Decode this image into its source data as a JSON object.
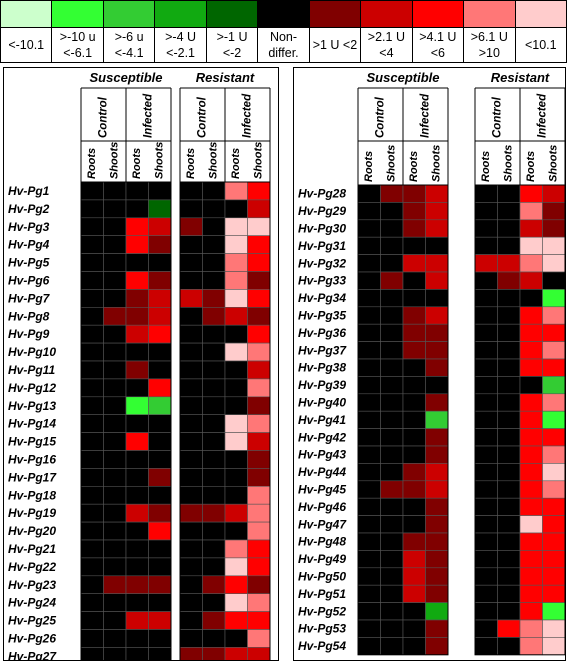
{
  "legend": [
    {
      "label": "<-10.1",
      "color": "#ccffcc"
    },
    {
      "label": ">-10 u <-6.1",
      "color": "#33ff33"
    },
    {
      "label": ">-6 u <-4.1",
      "color": "#33cc33"
    },
    {
      "label": ">-4 U <-2.1",
      "color": "#11aa11"
    },
    {
      "label": ">-1 U <-2",
      "color": "#006600"
    },
    {
      "label": "Non-differ.",
      "color": "#000000"
    },
    {
      "label": ">1 U <2",
      "color": "#800000"
    },
    {
      "label": ">2.1 U <4",
      "color": "#cc0000"
    },
    {
      "label": ">4.1 U <6",
      "color": "#ff0000"
    },
    {
      "label": ">6.1 U >10",
      "color": "#ff7777"
    },
    {
      "label": "<10.1",
      "color": "#ffcccc"
    }
  ],
  "groups": {
    "susceptible": "Susceptible",
    "resistant": "Resistant"
  },
  "conditions": {
    "control": "Control",
    "infected": "Infected"
  },
  "tissues": {
    "roots": "Roots",
    "shoots": "Shoots"
  },
  "chart_data": {
    "type": "heatmap",
    "legend_classes": [
      "<-10.1",
      ">-10 u <-6.1",
      ">-6 u <-4.1",
      ">-4 U <-2.1",
      ">-1 U <-2",
      "Non-differ.",
      ">1 U <2",
      ">2.1 U <4",
      ">4.1 U <6",
      ">6.1 U >10",
      "<10.1"
    ],
    "columns": [
      "Susceptible Control Roots",
      "Susceptible Control Shoots",
      "Susceptible Infected Roots",
      "Susceptible Infected Shoots",
      "Resistant Control Roots",
      "Resistant Control Shoots",
      "Resistant Infected Roots",
      "Resistant Infected Shoots"
    ],
    "panels": [
      {
        "genes": [
          "Hv-Pg1",
          "Hv-Pg2",
          "Hv-Pg3",
          "Hv-Pg4",
          "Hv-Pg5",
          "Hv-Pg6",
          "Hv-Pg7",
          "Hv-Pg8",
          "Hv-Pg9",
          "Hv-Pg10",
          "Hv-Pg11",
          "Hv-Pg12",
          "Hv-Pg13",
          "Hv-Pg14",
          "Hv-Pg15",
          "Hv-Pg16",
          "Hv-Pg17",
          "Hv-Pg18",
          "Hv-Pg19",
          "Hv-Pg20",
          "Hv-Pg21",
          "Hv-Pg22",
          "Hv-Pg23",
          "Hv-Pg24",
          "Hv-Pg25",
          "Hv-Pg26",
          "Hv-Pg27"
        ],
        "cells": [
          [
            "Non-differ.",
            "Non-differ.",
            "Non-differ.",
            "Non-differ.",
            "Non-differ.",
            "Non-differ.",
            ">6.1 U >10",
            ">4.1 U <6"
          ],
          [
            "Non-differ.",
            "Non-differ.",
            "Non-differ.",
            ">-1 U <-2",
            "Non-differ.",
            "Non-differ.",
            "Non-differ.",
            ">2.1 U <4"
          ],
          [
            "Non-differ.",
            "Non-differ.",
            ">4.1 U <6",
            ">2.1 U <4",
            ">1 U <2",
            "Non-differ.",
            "<10.1",
            "<10.1"
          ],
          [
            "Non-differ.",
            "Non-differ.",
            ">4.1 U <6",
            ">1 U <2",
            "Non-differ.",
            "Non-differ.",
            "<10.1",
            ">4.1 U <6"
          ],
          [
            "Non-differ.",
            "Non-differ.",
            "Non-differ.",
            "Non-differ.",
            "Non-differ.",
            "Non-differ.",
            ">6.1 U >10",
            ">4.1 U <6"
          ],
          [
            "Non-differ.",
            "Non-differ.",
            ">4.1 U <6",
            ">1 U <2",
            "Non-differ.",
            "Non-differ.",
            ">6.1 U >10",
            ">1 U <2"
          ],
          [
            "Non-differ.",
            "Non-differ.",
            ">1 U <2",
            ">2.1 U <4",
            ">2.1 U <4",
            ">1 U <2",
            "<10.1",
            ">4.1 U <6"
          ],
          [
            "Non-differ.",
            ">1 U <2",
            ">1 U <2",
            ">2.1 U <4",
            "Non-differ.",
            ">1 U <2",
            ">2.1 U <4",
            ">1 U <2"
          ],
          [
            "Non-differ.",
            "Non-differ.",
            ">2.1 U <4",
            ">4.1 U <6",
            "Non-differ.",
            "Non-differ.",
            "Non-differ.",
            ">4.1 U <6"
          ],
          [
            "Non-differ.",
            "Non-differ.",
            "Non-differ.",
            "Non-differ.",
            "Non-differ.",
            "Non-differ.",
            "<10.1",
            ">6.1 U >10"
          ],
          [
            "Non-differ.",
            "Non-differ.",
            ">1 U <2",
            "Non-differ.",
            "Non-differ.",
            "Non-differ.",
            "Non-differ.",
            ">2.1 U <4"
          ],
          [
            "Non-differ.",
            "Non-differ.",
            "Non-differ.",
            ">4.1 U <6",
            "Non-differ.",
            "Non-differ.",
            "Non-differ.",
            ">6.1 U >10"
          ],
          [
            "Non-differ.",
            "Non-differ.",
            ">-10 u <-6.1",
            ">-6 u <-4.1",
            "Non-differ.",
            "Non-differ.",
            "Non-differ.",
            ">1 U <2"
          ],
          [
            "Non-differ.",
            "Non-differ.",
            "Non-differ.",
            "Non-differ.",
            "Non-differ.",
            "Non-differ.",
            "<10.1",
            ">6.1 U >10"
          ],
          [
            "Non-differ.",
            "Non-differ.",
            ">4.1 U <6",
            "Non-differ.",
            "Non-differ.",
            "Non-differ.",
            "<10.1",
            ">2.1 U <4"
          ],
          [
            "Non-differ.",
            "Non-differ.",
            "Non-differ.",
            "Non-differ.",
            "Non-differ.",
            "Non-differ.",
            "Non-differ.",
            ">1 U <2"
          ],
          [
            "Non-differ.",
            "Non-differ.",
            "Non-differ.",
            ">1 U <2",
            "Non-differ.",
            "Non-differ.",
            "Non-differ.",
            ">1 U <2"
          ],
          [
            "Non-differ.",
            "Non-differ.",
            "Non-differ.",
            "Non-differ.",
            "Non-differ.",
            "Non-differ.",
            "Non-differ.",
            ">6.1 U >10"
          ],
          [
            "Non-differ.",
            "Non-differ.",
            ">2.1 U <4",
            ">1 U <2",
            ">1 U <2",
            ">1 U <2",
            ">2.1 U <4",
            ">6.1 U >10"
          ],
          [
            "Non-differ.",
            "Non-differ.",
            "Non-differ.",
            ">4.1 U <6",
            "Non-differ.",
            "Non-differ.",
            "Non-differ.",
            ">6.1 U >10"
          ],
          [
            "Non-differ.",
            "Non-differ.",
            "Non-differ.",
            "Non-differ.",
            "Non-differ.",
            "Non-differ.",
            ">6.1 U >10",
            ">4.1 U <6"
          ],
          [
            "Non-differ.",
            "Non-differ.",
            "Non-differ.",
            "Non-differ.",
            "Non-differ.",
            "Non-differ.",
            "<10.1",
            ">4.1 U <6"
          ],
          [
            "Non-differ.",
            ">1 U <2",
            ">1 U <2",
            ">1 U <2",
            "Non-differ.",
            ">1 U <2",
            ">4.1 U <6",
            ">1 U <2"
          ],
          [
            "Non-differ.",
            "Non-differ.",
            "Non-differ.",
            "Non-differ.",
            "Non-differ.",
            "Non-differ.",
            "<10.1",
            ">6.1 U >10"
          ],
          [
            "Non-differ.",
            "Non-differ.",
            ">2.1 U <4",
            ">2.1 U <4",
            "Non-differ.",
            ">1 U <2",
            ">4.1 U <6",
            ">4.1 U <6"
          ],
          [
            "Non-differ.",
            "Non-differ.",
            "Non-differ.",
            "Non-differ.",
            "Non-differ.",
            "Non-differ.",
            "Non-differ.",
            ">6.1 U >10"
          ],
          [
            "Non-differ.",
            "Non-differ.",
            "Non-differ.",
            "Non-differ.",
            ">1 U <2",
            ">1 U <2",
            ">2.1 U <4",
            ">2.1 U <4"
          ]
        ]
      },
      {
        "genes": [
          "Hv-Pg28",
          "Hv-Pg29",
          "Hv-Pg30",
          "Hv-Pg31",
          "Hv-Pg32",
          "Hv-Pg33",
          "Hv-Pg34",
          "Hv-Pg35",
          "Hv-Pg36",
          "Hv-Pg37",
          "Hv-Pg38",
          "Hv-Pg39",
          "Hv-Pg40",
          "Hv-Pg41",
          "Hv-Pg42",
          "Hv-Pg43",
          "Hv-Pg44",
          "Hv-Pg45",
          "Hv-Pg46",
          "Hv-Pg47",
          "Hv-Pg48",
          "Hv-Pg49",
          "Hv-Pg50",
          "Hv-Pg51",
          "Hv-Pg52",
          "Hv-Pg53",
          "Hv-Pg54"
        ],
        "cells": [
          [
            "Non-differ.",
            ">1 U <2",
            ">1 U <2",
            ">2.1 U <4",
            "Non-differ.",
            "Non-differ.",
            ">4.1 U <6",
            ">2.1 U <4"
          ],
          [
            "Non-differ.",
            "Non-differ.",
            ">1 U <2",
            ">2.1 U <4",
            "Non-differ.",
            "Non-differ.",
            ">6.1 U >10",
            ">1 U <2"
          ],
          [
            "Non-differ.",
            "Non-differ.",
            ">1 U <2",
            ">2.1 U <4",
            "Non-differ.",
            "Non-differ.",
            ">2.1 U <4",
            ">1 U <2"
          ],
          [
            "Non-differ.",
            "Non-differ.",
            "Non-differ.",
            "Non-differ.",
            "Non-differ.",
            "Non-differ.",
            "<10.1",
            "<10.1"
          ],
          [
            "Non-differ.",
            "Non-differ.",
            ">2.1 U <4",
            ">2.1 U <4",
            ">2.1 U <4",
            ">2.1 U <4",
            ">6.1 U >10",
            "<10.1"
          ],
          [
            "Non-differ.",
            ">1 U <2",
            "Non-differ.",
            ">2.1 U <4",
            "Non-differ.",
            ">1 U <2",
            ">2.1 U <4",
            "Non-differ."
          ],
          [
            "Non-differ.",
            "Non-differ.",
            "Non-differ.",
            "Non-differ.",
            "Non-differ.",
            "Non-differ.",
            "Non-differ.",
            ">-10 u <-6.1"
          ],
          [
            "Non-differ.",
            "Non-differ.",
            ">1 U <2",
            ">2.1 U <4",
            "Non-differ.",
            "Non-differ.",
            ">4.1 U <6",
            ">6.1 U >10"
          ],
          [
            "Non-differ.",
            "Non-differ.",
            ">1 U <2",
            ">1 U <2",
            "Non-differ.",
            "Non-differ.",
            ">4.1 U <6",
            ">4.1 U <6"
          ],
          [
            "Non-differ.",
            "Non-differ.",
            ">1 U <2",
            ">1 U <2",
            "Non-differ.",
            "Non-differ.",
            ">4.1 U <6",
            ">6.1 U >10"
          ],
          [
            "Non-differ.",
            "Non-differ.",
            "Non-differ.",
            ">1 U <2",
            "Non-differ.",
            "Non-differ.",
            ">4.1 U <6",
            ">4.1 U <6"
          ],
          [
            "Non-differ.",
            "Non-differ.",
            "Non-differ.",
            "Non-differ.",
            "Non-differ.",
            "Non-differ.",
            "Non-differ.",
            ">-6 u <-4.1"
          ],
          [
            "Non-differ.",
            "Non-differ.",
            "Non-differ.",
            ">1 U <2",
            "Non-differ.",
            "Non-differ.",
            ">4.1 U <6",
            ">6.1 U >10"
          ],
          [
            "Non-differ.",
            "Non-differ.",
            "Non-differ.",
            ">-6 u <-4.1",
            "Non-differ.",
            "Non-differ.",
            ">4.1 U <6",
            ">-10 u <-6.1"
          ],
          [
            "Non-differ.",
            "Non-differ.",
            "Non-differ.",
            ">1 U <2",
            "Non-differ.",
            "Non-differ.",
            ">4.1 U <6",
            ">4.1 U <6"
          ],
          [
            "Non-differ.",
            "Non-differ.",
            "Non-differ.",
            ">1 U <2",
            "Non-differ.",
            "Non-differ.",
            ">4.1 U <6",
            ">6.1 U >10"
          ],
          [
            "Non-differ.",
            "Non-differ.",
            ">1 U <2",
            ">2.1 U <4",
            "Non-differ.",
            "Non-differ.",
            ">4.1 U <6",
            "<10.1"
          ],
          [
            "Non-differ.",
            ">1 U <2",
            ">1 U <2",
            ">2.1 U <4",
            "Non-differ.",
            "Non-differ.",
            ">4.1 U <6",
            ">6.1 U >10"
          ],
          [
            "Non-differ.",
            "Non-differ.",
            "Non-differ.",
            ">1 U <2",
            "Non-differ.",
            "Non-differ.",
            ">4.1 U <6",
            ">4.1 U <6"
          ],
          [
            "Non-differ.",
            "Non-differ.",
            "Non-differ.",
            ">1 U <2",
            "Non-differ.",
            "Non-differ.",
            "<10.1",
            ">4.1 U <6"
          ],
          [
            "Non-differ.",
            "Non-differ.",
            ">1 U <2",
            ">1 U <2",
            "Non-differ.",
            "Non-differ.",
            ">4.1 U <6",
            ">4.1 U <6"
          ],
          [
            "Non-differ.",
            "Non-differ.",
            ">2.1 U <4",
            ">1 U <2",
            "Non-differ.",
            "Non-differ.",
            ">4.1 U <6",
            ">4.1 U <6"
          ],
          [
            "Non-differ.",
            "Non-differ.",
            ">2.1 U <4",
            ">1 U <2",
            "Non-differ.",
            "Non-differ.",
            ">4.1 U <6",
            ">4.1 U <6"
          ],
          [
            "Non-differ.",
            "Non-differ.",
            ">2.1 U <4",
            ">1 U <2",
            "Non-differ.",
            "Non-differ.",
            ">4.1 U <6",
            ">4.1 U <6"
          ],
          [
            "Non-differ.",
            "Non-differ.",
            "Non-differ.",
            ">-4 U <-2.1",
            "Non-differ.",
            "Non-differ.",
            ">4.1 U <6",
            ">-10 u <-6.1"
          ],
          [
            "Non-differ.",
            "Non-differ.",
            "Non-differ.",
            ">1 U <2",
            "Non-differ.",
            ">4.1 U <6",
            ">6.1 U >10",
            "<10.1"
          ],
          [
            "Non-differ.",
            "Non-differ.",
            "Non-differ.",
            ">1 U <2",
            "Non-differ.",
            "Non-differ.",
            ">6.1 U >10",
            "<10.1"
          ]
        ]
      }
    ]
  }
}
